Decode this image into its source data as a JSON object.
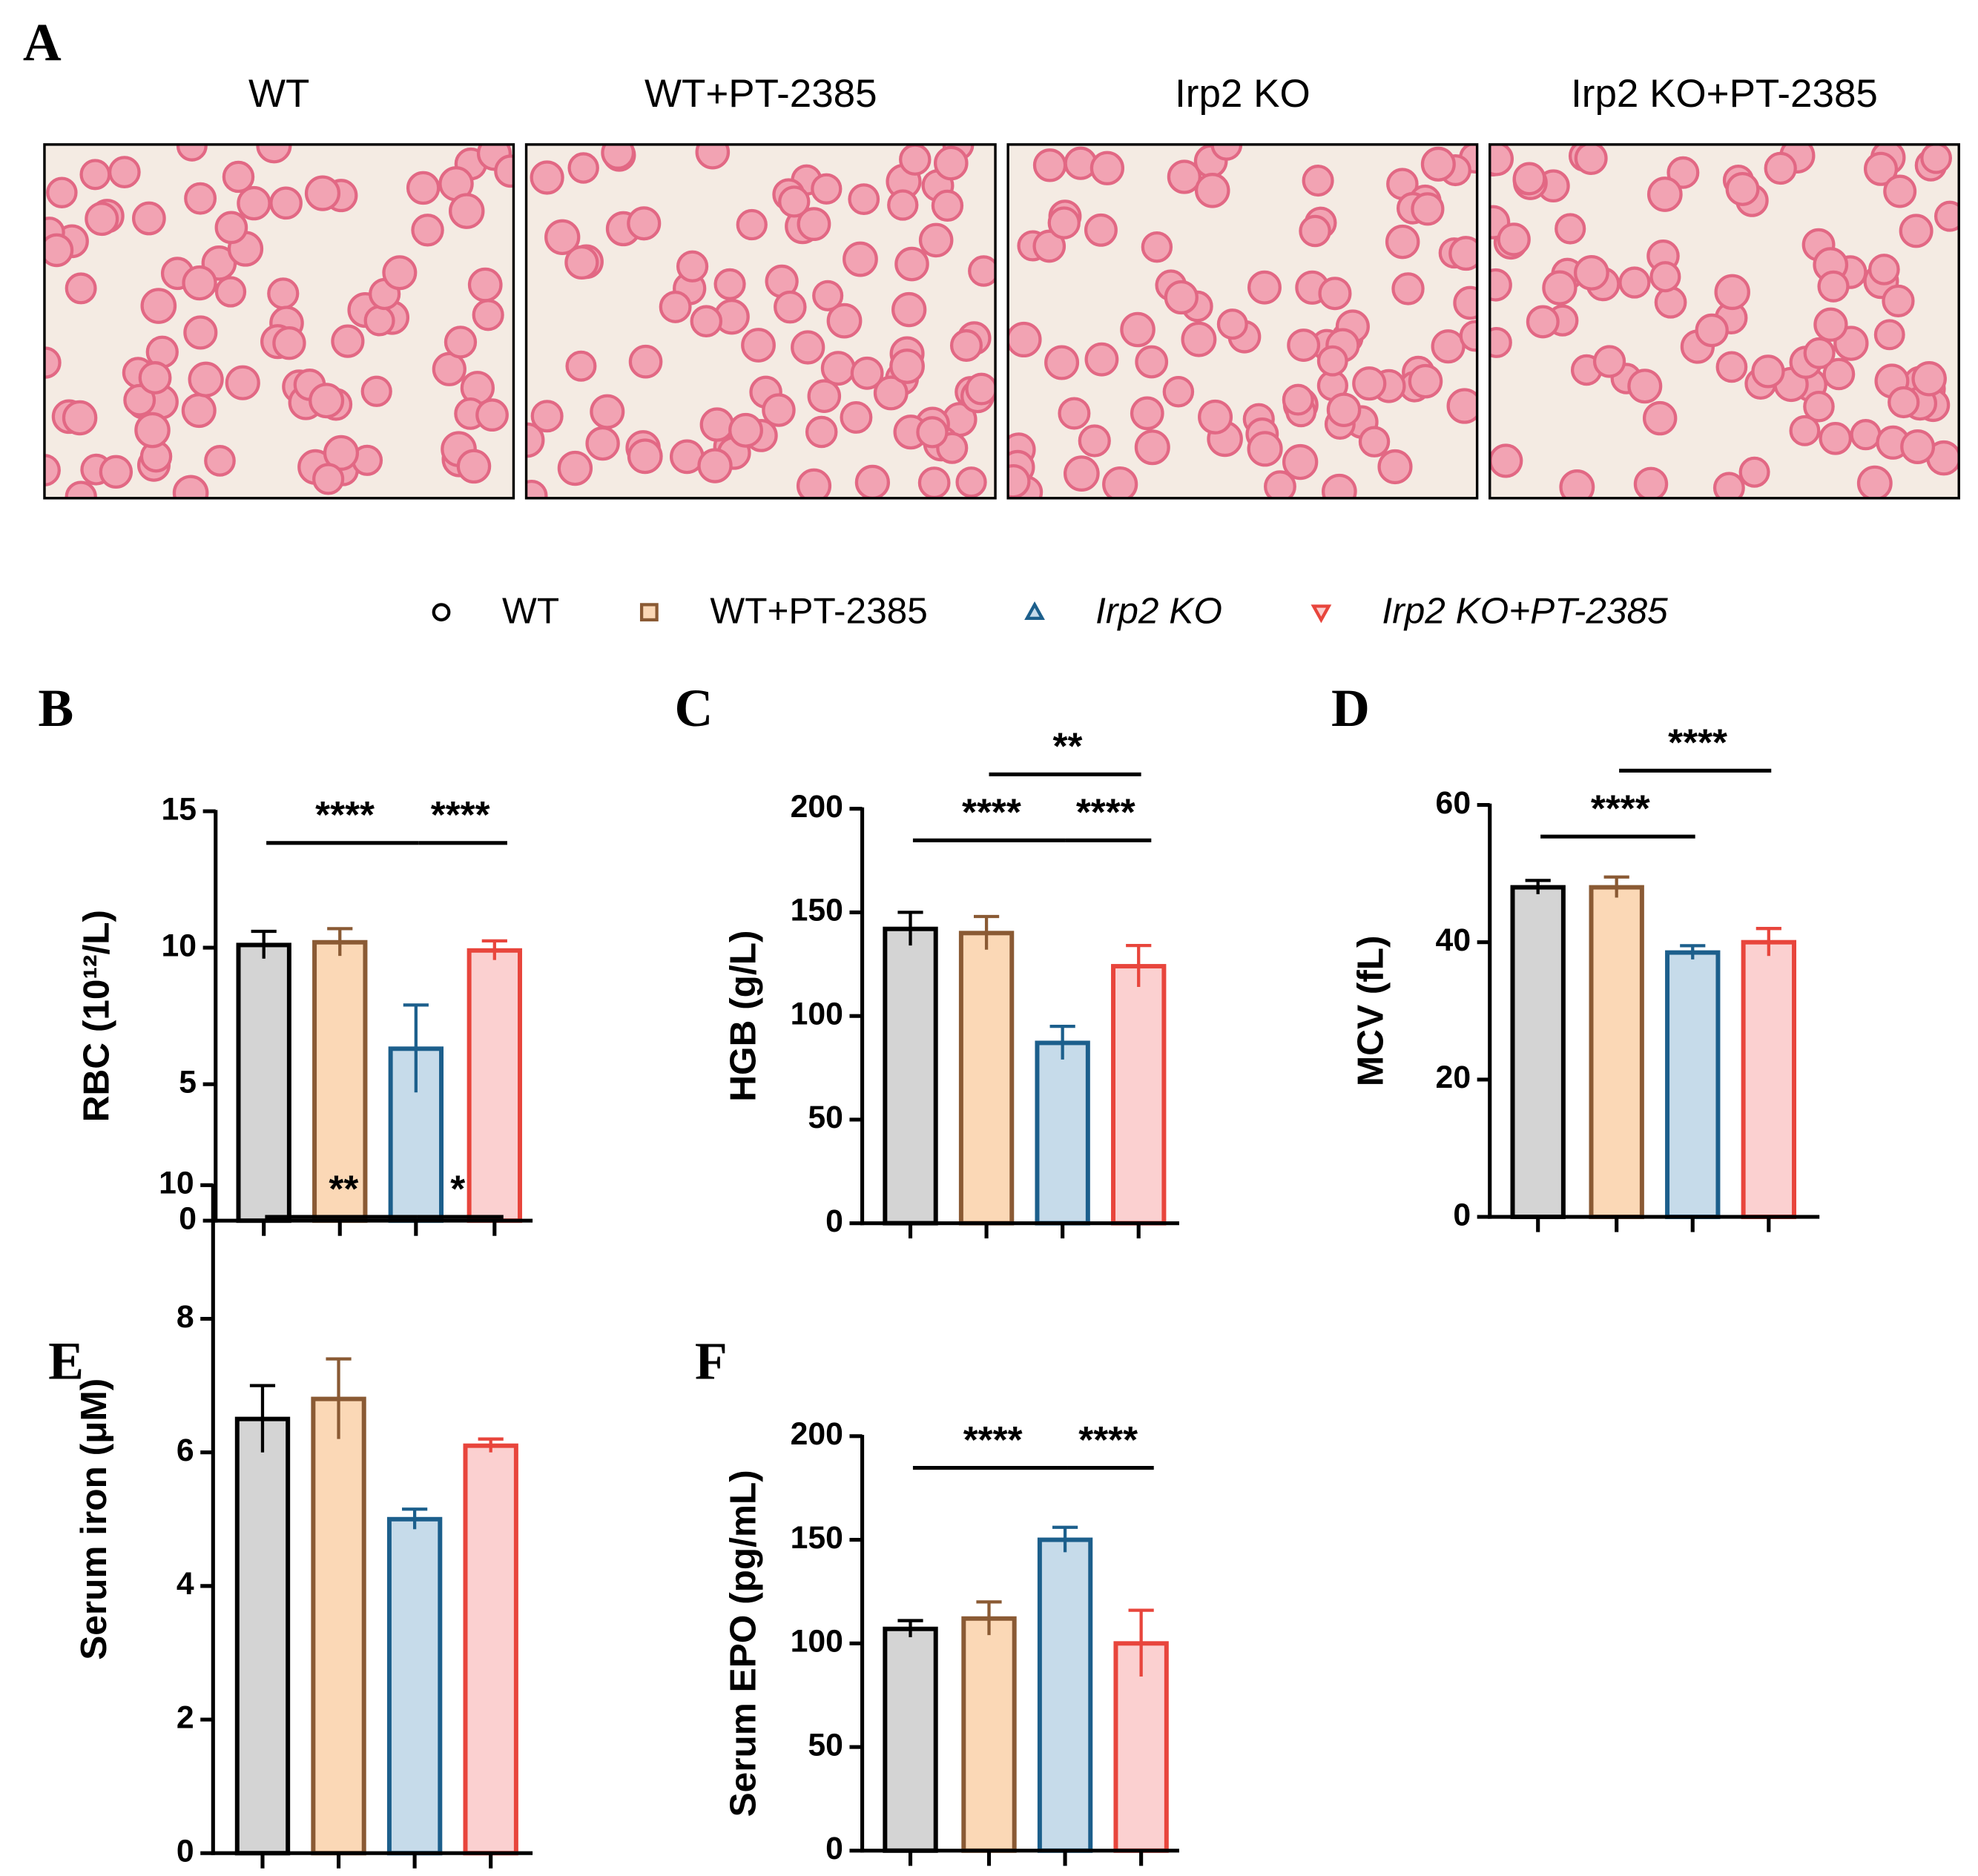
{
  "panel_a": {
    "label": "A",
    "titles": [
      "WT",
      "WT+PT-2385",
      "Irp2 KO",
      "Irp2 KO+PT-2385"
    ]
  },
  "legend": {
    "names": [
      "WT",
      "WT+PT-2385",
      "Irp2 KO",
      "Irp2 KO+PT-2385"
    ],
    "colors": [
      "#000000",
      "#8a5a34",
      "#1c5f8c",
      "#e8453c"
    ],
    "fills": [
      "#d4d4d4",
      "#fbd8b6",
      "#c6dbea",
      "#fbd0d0"
    ],
    "markers": [
      "circle",
      "square",
      "triangle",
      "triangle-down"
    ],
    "italic": [
      false,
      false,
      true,
      true
    ]
  },
  "chart_data": [
    {
      "type": "bar",
      "panel": "B",
      "ylabel": "RBC (10¹²/L)",
      "categories": [
        null,
        null,
        null,
        null
      ],
      "values": [
        10.1,
        10.2,
        6.3,
        9.9
      ],
      "errors": [
        0.5,
        0.5,
        1.6,
        0.35
      ],
      "ylim": [
        0,
        15
      ],
      "yticks": [
        0,
        5,
        10,
        15
      ],
      "comparisons": [
        {
          "groups": [
            0,
            2
          ],
          "label": "****"
        },
        {
          "groups": [
            2,
            3
          ],
          "label": "****"
        }
      ]
    },
    {
      "type": "bar",
      "panel": "C",
      "ylabel": "HGB (g/L)",
      "categories": [
        null,
        null,
        null,
        null
      ],
      "values": [
        142,
        140,
        87,
        124
      ],
      "errors": [
        8,
        8,
        8,
        10
      ],
      "ylim": [
        0,
        200
      ],
      "yticks": [
        0,
        50,
        100,
        150,
        200
      ],
      "comparisons": [
        {
          "groups": [
            0,
            2
          ],
          "label": "****"
        },
        {
          "groups": [
            2,
            3
          ],
          "label": "****"
        },
        {
          "groups": [
            1,
            3
          ],
          "label": "**"
        }
      ]
    },
    {
      "type": "bar",
      "panel": "D",
      "ylabel": "MCV (fL)",
      "categories": [
        null,
        null,
        null,
        null
      ],
      "values": [
        48,
        48,
        38.5,
        40
      ],
      "errors": [
        1,
        1.5,
        1,
        2
      ],
      "ylim": [
        0,
        60
      ],
      "yticks": [
        0,
        20,
        40,
        60
      ],
      "comparisons": [
        {
          "groups": [
            0,
            2
          ],
          "label": "****"
        },
        {
          "groups": [
            1,
            3
          ],
          "label": "****"
        }
      ]
    },
    {
      "type": "bar",
      "panel": "E",
      "ylabel": "Serum iron (μM)",
      "categories": [
        null,
        null,
        null,
        null
      ],
      "values": [
        6.5,
        6.8,
        5.0,
        6.1
      ],
      "errors": [
        0.5,
        0.6,
        0.15,
        0.1
      ],
      "ylim": [
        0,
        10
      ],
      "yticks": [
        0,
        2,
        4,
        6,
        8,
        10
      ],
      "comparisons": [
        {
          "groups": [
            0,
            2
          ],
          "label": "**"
        },
        {
          "groups": [
            2,
            3
          ],
          "label": "*"
        }
      ]
    },
    {
      "type": "bar",
      "panel": "F",
      "ylabel": "Serum EPO (pg/mL)",
      "categories": [
        null,
        null,
        null,
        null
      ],
      "values": [
        107,
        112,
        150,
        100
      ],
      "errors": [
        4,
        8,
        6,
        16
      ],
      "ylim": [
        0,
        200
      ],
      "yticks": [
        0,
        50,
        100,
        150,
        200
      ],
      "comparisons": [
        {
          "groups": [
            0,
            2
          ],
          "label": "****"
        },
        {
          "groups": [
            2,
            3
          ],
          "label": "****"
        }
      ]
    }
  ]
}
